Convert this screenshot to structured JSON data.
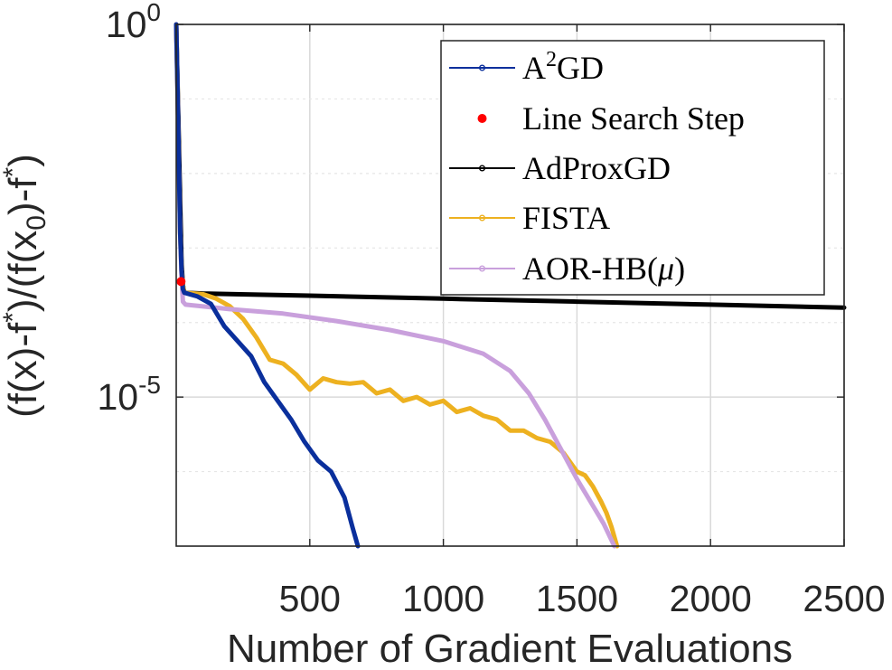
{
  "chart_data": {
    "type": "line",
    "title": "",
    "xlabel": "Number of Gradient Evaluations",
    "ylabel": "(f(x)-f*)/(f(x0)-f*)",
    "ylabel_parts": {
      "a": "(f(x)-f",
      "a_sup": "*",
      "b": ")/(f(x",
      "b_sub": "0",
      "c": ")-f",
      "c_sup": "*",
      "d": ")"
    },
    "x_scale": "linear",
    "y_scale": "log",
    "xlim": [
      0,
      2500
    ],
    "ylim_log10": [
      -7,
      0
    ],
    "x_ticks": [
      500,
      1000,
      1500,
      2000,
      2500
    ],
    "x_tick_labels": [
      "500",
      "1000",
      "1500",
      "2000",
      "2500"
    ],
    "y_ticks_log10": [
      0,
      -5
    ],
    "y_tick_labels": [
      {
        "base": "10",
        "exp": "0"
      },
      {
        "base": "10",
        "exp": "-5"
      }
    ],
    "minor_grid_log10": [
      -1,
      -2,
      -3,
      -4,
      -6
    ],
    "grid": true,
    "legend_position": "top-right",
    "legend": [
      {
        "name": "A2GD",
        "label_base": "A",
        "label_sup": "2",
        "label_rest": "GD",
        "color": "#0a2f9c",
        "style": "line-marker"
      },
      {
        "name": "Line Search Step",
        "label": "Line Search Step",
        "color": "#ff0000",
        "style": "dot"
      },
      {
        "name": "AdProxGD",
        "label": "AdProxGD",
        "color": "#000000",
        "style": "line-marker"
      },
      {
        "name": "FISTA",
        "label": "FISTA",
        "color": "#edb120",
        "style": "line-marker"
      },
      {
        "name": "AOR-HB",
        "label_base": "AOR-HB(",
        "label_mu": "μ",
        "label_end": ")",
        "color": "#c9a0dc",
        "style": "line-marker"
      }
    ],
    "series": [
      {
        "name": "AdProxGD",
        "color": "#000000",
        "points": [
          [
            0,
            0
          ],
          [
            5,
            -0.8
          ],
          [
            10,
            -1.6
          ],
          [
            15,
            -2.4
          ],
          [
            20,
            -3.2
          ],
          [
            25,
            -3.5
          ],
          [
            30,
            -3.6
          ],
          [
            100,
            -3.61
          ],
          [
            500,
            -3.64
          ],
          [
            1000,
            -3.68
          ],
          [
            1500,
            -3.72
          ],
          [
            2000,
            -3.76
          ],
          [
            2500,
            -3.8
          ]
        ]
      },
      {
        "name": "FISTA",
        "color": "#edb120",
        "points": [
          [
            0,
            0
          ],
          [
            5,
            -0.9
          ],
          [
            10,
            -1.9
          ],
          [
            15,
            -2.8
          ],
          [
            20,
            -3.3
          ],
          [
            25,
            -3.5
          ],
          [
            30,
            -3.6
          ],
          [
            100,
            -3.62
          ],
          [
            150,
            -3.68
          ],
          [
            200,
            -3.78
          ],
          [
            250,
            -3.95
          ],
          [
            300,
            -4.2
          ],
          [
            350,
            -4.5
          ],
          [
            400,
            -4.55
          ],
          [
            450,
            -4.7
          ],
          [
            500,
            -4.9
          ],
          [
            550,
            -4.75
          ],
          [
            600,
            -4.8
          ],
          [
            650,
            -4.82
          ],
          [
            700,
            -4.8
          ],
          [
            750,
            -4.95
          ],
          [
            800,
            -4.9
          ],
          [
            850,
            -5.05
          ],
          [
            900,
            -5.0
          ],
          [
            950,
            -5.1
          ],
          [
            1000,
            -5.05
          ],
          [
            1050,
            -5.2
          ],
          [
            1100,
            -5.15
          ],
          [
            1150,
            -5.25
          ],
          [
            1200,
            -5.3
          ],
          [
            1250,
            -5.45
          ],
          [
            1300,
            -5.45
          ],
          [
            1350,
            -5.55
          ],
          [
            1400,
            -5.6
          ],
          [
            1450,
            -5.75
          ],
          [
            1500,
            -6.0
          ],
          [
            1530,
            -6.05
          ],
          [
            1560,
            -6.2
          ],
          [
            1590,
            -6.4
          ],
          [
            1610,
            -6.55
          ],
          [
            1630,
            -6.75
          ],
          [
            1650,
            -7.0
          ]
        ]
      },
      {
        "name": "AOR-HB",
        "color": "#c9a0dc",
        "points": [
          [
            0,
            0
          ],
          [
            5,
            -0.9
          ],
          [
            10,
            -1.9
          ],
          [
            15,
            -2.8
          ],
          [
            20,
            -3.4
          ],
          [
            25,
            -3.72
          ],
          [
            35,
            -3.76
          ],
          [
            200,
            -3.82
          ],
          [
            400,
            -3.88
          ],
          [
            600,
            -3.98
          ],
          [
            800,
            -4.1
          ],
          [
            1000,
            -4.25
          ],
          [
            1150,
            -4.42
          ],
          [
            1250,
            -4.65
          ],
          [
            1320,
            -4.95
          ],
          [
            1380,
            -5.3
          ],
          [
            1440,
            -5.7
          ],
          [
            1500,
            -6.1
          ],
          [
            1550,
            -6.4
          ],
          [
            1600,
            -6.7
          ],
          [
            1640,
            -7.0
          ]
        ]
      },
      {
        "name": "A2GD",
        "color": "#0a2f9c",
        "points": [
          [
            0,
            0
          ],
          [
            5,
            -0.9
          ],
          [
            10,
            -1.9
          ],
          [
            15,
            -2.8
          ],
          [
            20,
            -3.3
          ],
          [
            25,
            -3.55
          ],
          [
            30,
            -3.6
          ],
          [
            80,
            -3.65
          ],
          [
            130,
            -3.75
          ],
          [
            180,
            -4.05
          ],
          [
            230,
            -4.25
          ],
          [
            280,
            -4.45
          ],
          [
            330,
            -4.8
          ],
          [
            380,
            -5.05
          ],
          [
            430,
            -5.3
          ],
          [
            480,
            -5.6
          ],
          [
            530,
            -5.85
          ],
          [
            580,
            -6.0
          ],
          [
            630,
            -6.35
          ],
          [
            660,
            -6.75
          ],
          [
            680,
            -7.0
          ]
        ]
      }
    ],
    "line_search_points": [
      [
        18,
        -3.45
      ]
    ]
  }
}
